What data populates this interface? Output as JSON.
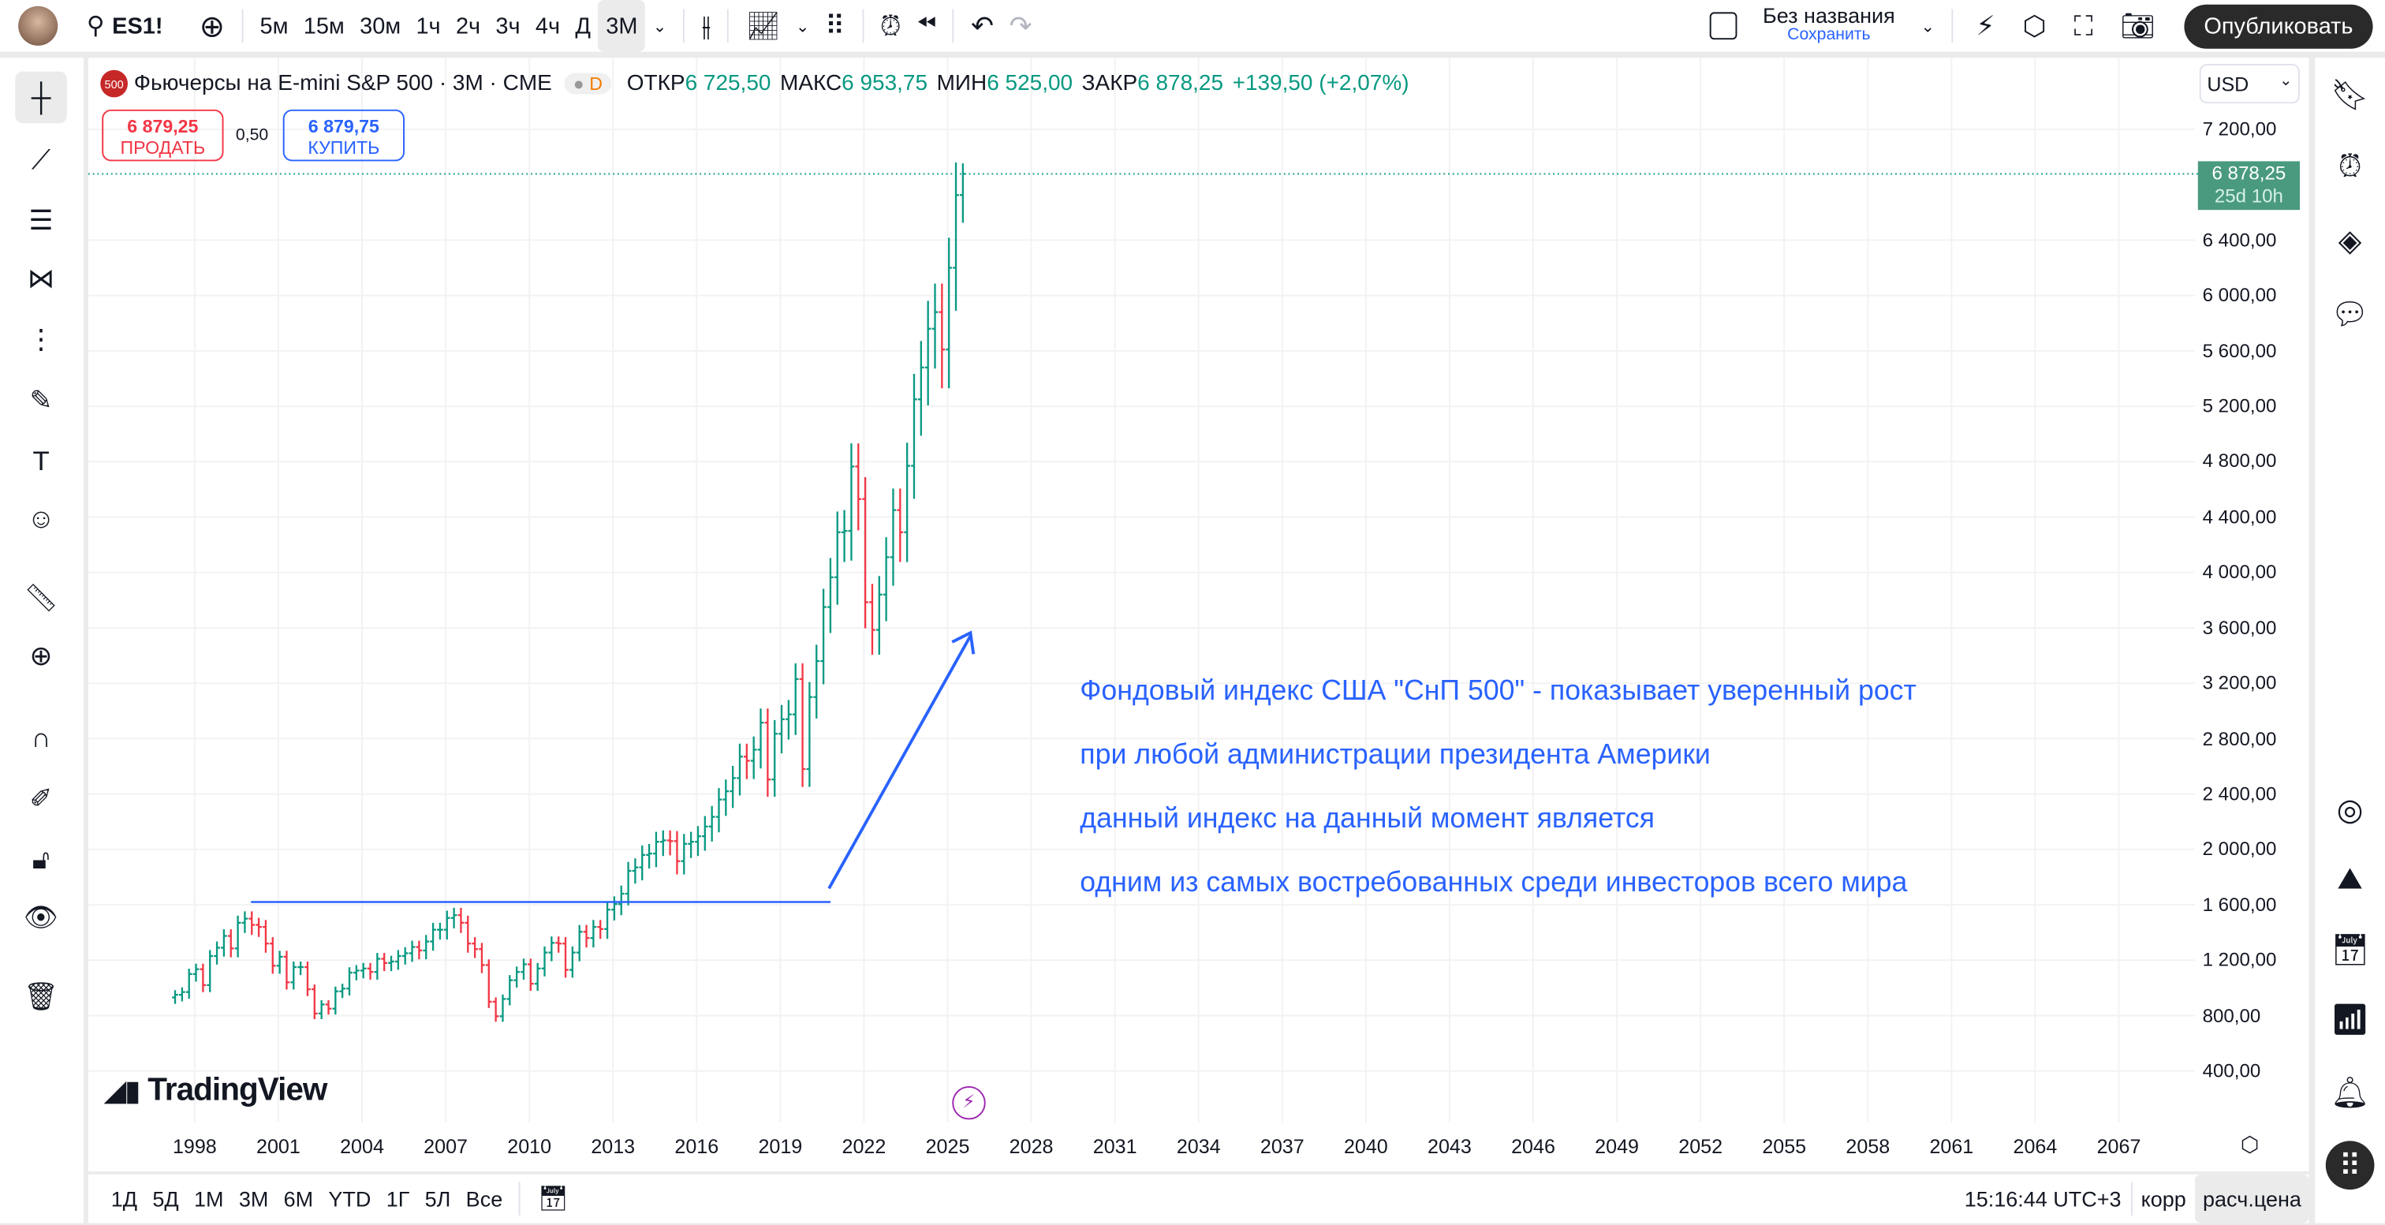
{
  "topbar": {
    "symbol": "ES1!",
    "intervals": [
      "5м",
      "15м",
      "30м",
      "1ч",
      "2ч",
      "3ч",
      "4ч",
      "Д",
      "3М"
    ],
    "selected_interval": "3М",
    "layout_name": "Без названия",
    "save_label": "Сохранить",
    "publish_label": "Опубликовать"
  },
  "legend": {
    "logo": "500",
    "title": "Фьючерсы на E-mini S&P 500 · 3М · CME",
    "badge": "D",
    "open_label": "ОТКР",
    "open": "6 725,50",
    "high_label": "МАКС",
    "high": "6 953,75",
    "low_label": "МИН",
    "low": "6 525,00",
    "close_label": "ЗАКР",
    "close": "6 878,25",
    "change": "+139,50 (+2,07%)"
  },
  "trade": {
    "sell_price": "6 879,25",
    "sell_label": "ПРОДАТЬ",
    "spread": "0,50",
    "buy_price": "6 879,75",
    "buy_label": "КУПИТЬ"
  },
  "price_axis": {
    "currency": "USD",
    "labels": [
      "7 200,00",
      "6 400,00",
      "6 000,00",
      "5 600,00",
      "5 200,00",
      "4 800,00",
      "4 400,00",
      "4 000,00",
      "3 600,00",
      "3 200,00",
      "2 800,00",
      "2 400,00",
      "2 000,00",
      "1 600,00",
      "1 200,00",
      "800,00",
      "400,00"
    ],
    "last_price": "6 878,25",
    "countdown": "25d 10h"
  },
  "time_axis": {
    "labels": [
      "1998",
      "2001",
      "2004",
      "2007",
      "2010",
      "2013",
      "2016",
      "2019",
      "2022",
      "2025",
      "2028",
      "2031",
      "2034",
      "2037",
      "2040",
      "2043",
      "2046",
      "2049",
      "2052",
      "2055",
      "2058",
      "2061",
      "2064",
      "2067"
    ]
  },
  "annotation": {
    "lines": [
      "Фондовый индекс США \"СнП 500\" - показывает уверенный рост",
      "при любой администрации президента Америки",
      "данный индекс на данный момент является",
      "одним из самых востребованных среди инвесторов всего мира"
    ],
    "hline_price": 1620,
    "color": "#2962ff"
  },
  "watermark": "TradingView",
  "bottom": {
    "ranges": [
      "1Д",
      "5Д",
      "1М",
      "3М",
      "6М",
      "YTD",
      "1Г",
      "5Л",
      "Все"
    ],
    "time": "15:16:44 UTC+3",
    "adj": "корр",
    "settlement": "расч.цена"
  },
  "colors": {
    "up": "#089981",
    "down": "#f23645",
    "accent": "#2962ff"
  },
  "chart_data": {
    "type": "ohlc",
    "interval": "quarterly",
    "ylim": [
      400,
      7200
    ],
    "closes": [
      950,
      970,
      1100,
      1135,
      1020,
      1230,
      1290,
      1375,
      1285,
      1470,
      1500,
      1455,
      1440,
      1320,
      1160,
      1225,
      1040,
      1150,
      1150,
      990,
      815,
      880,
      850,
      975,
      995,
      1110,
      1125,
      1140,
      1115,
      1210,
      1180,
      1190,
      1230,
      1250,
      1295,
      1270,
      1335,
      1420,
      1420,
      1505,
      1525,
      1470,
      1320,
      1280,
      1165,
      900,
      795,
      920,
      1055,
      1115,
      1170,
      1030,
      1140,
      1255,
      1325,
      1320,
      1130,
      1255,
      1405,
      1360,
      1440,
      1425,
      1565,
      1605,
      1680,
      1845,
      1870,
      1960,
      1970,
      2055,
      2065,
      2060,
      1915,
      2040,
      2055,
      2095,
      2165,
      2235,
      2360,
      2420,
      2515,
      2670,
      2640,
      2720,
      2915,
      2505,
      2835,
      2940,
      2975,
      3230,
      2580,
      3100,
      3360,
      3750,
      3965,
      4290,
      4300,
      4765,
      4530,
      3785,
      3585,
      3840,
      4110,
      4450,
      4290,
      4770,
      5250,
      5480,
      5760,
      5880,
      5610,
      6200,
      6725,
      6878.25
    ],
    "last_bar": {
      "open": 6725.5,
      "high": 6953.75,
      "low": 6525,
      "close": 6878.25
    }
  }
}
